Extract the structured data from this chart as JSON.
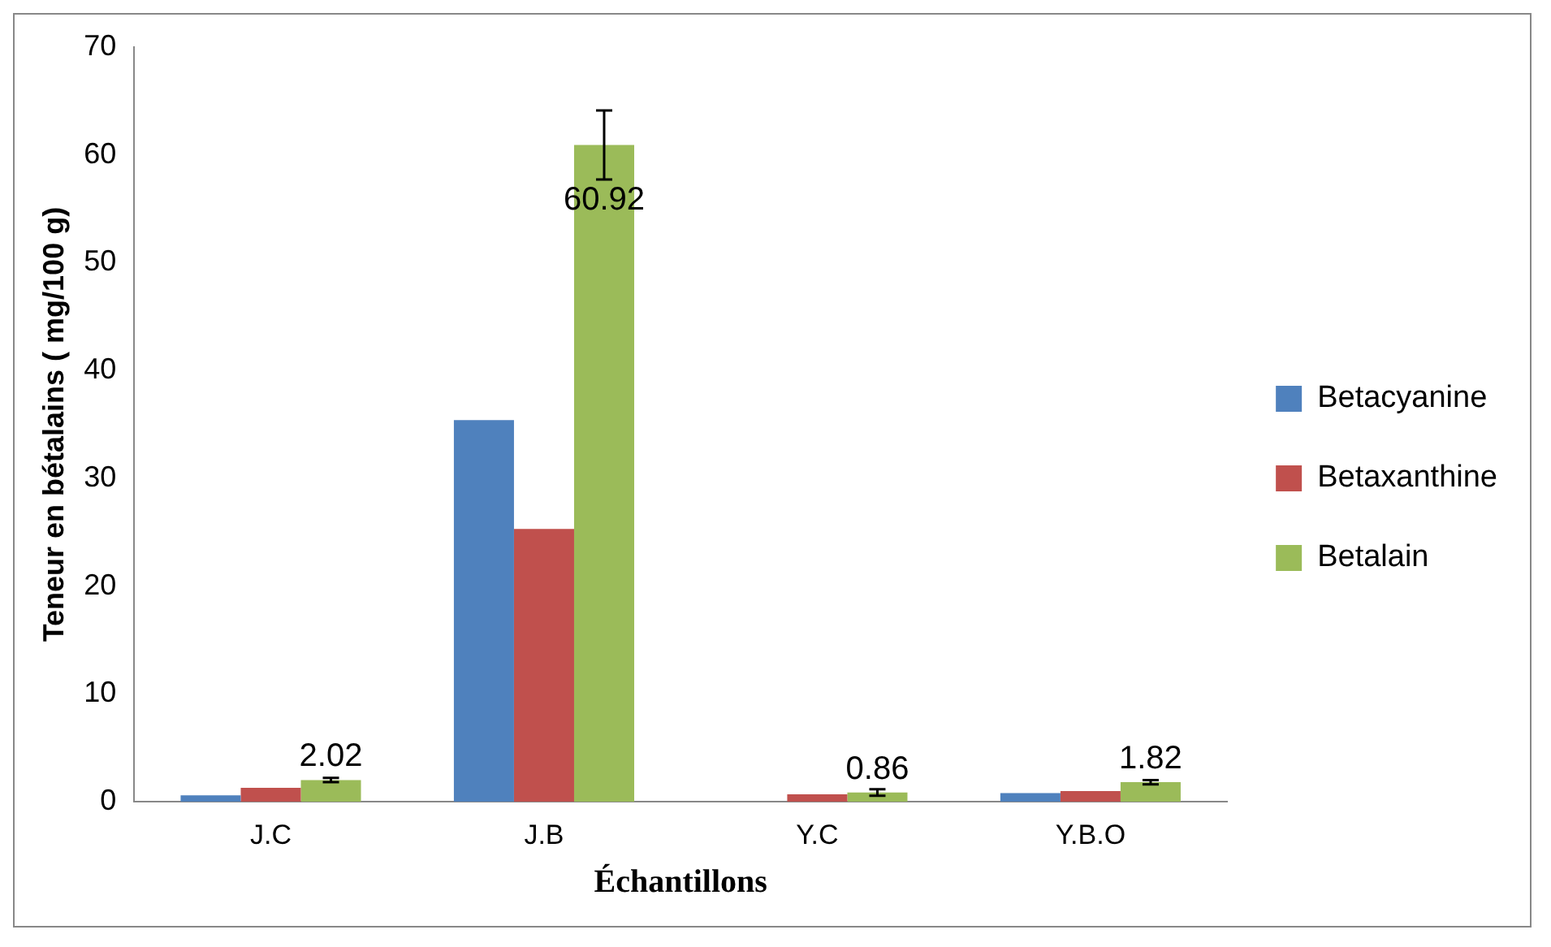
{
  "chart_data": {
    "type": "bar",
    "xlabel": "Échantillons",
    "ylabel": "Teneur en bétalains ( mg/100 g)",
    "categories": [
      "J.C",
      "J.B",
      "Y.C",
      "Y.B.O"
    ],
    "series": [
      {
        "name": "Betacyanine",
        "color": "#4f81bd",
        "values": [
          0.6,
          35.4,
          null,
          0.8
        ]
      },
      {
        "name": "Betaxanthine",
        "color": "#c0504d",
        "values": [
          1.3,
          25.3,
          0.7,
          1.0
        ]
      },
      {
        "name": "Betalain",
        "color": "#9bbb59",
        "values": [
          2.02,
          60.92,
          0.86,
          1.82
        ],
        "errors": [
          0.2,
          3.2,
          0.3,
          0.2
        ],
        "value_labels": [
          "2.02",
          "60.92",
          "0.86",
          "1.82"
        ]
      }
    ],
    "ylim": [
      0,
      70
    ],
    "yticks": [
      0,
      10,
      20,
      30,
      40,
      50,
      60,
      70
    ],
    "grid": false,
    "legend": "right"
  }
}
